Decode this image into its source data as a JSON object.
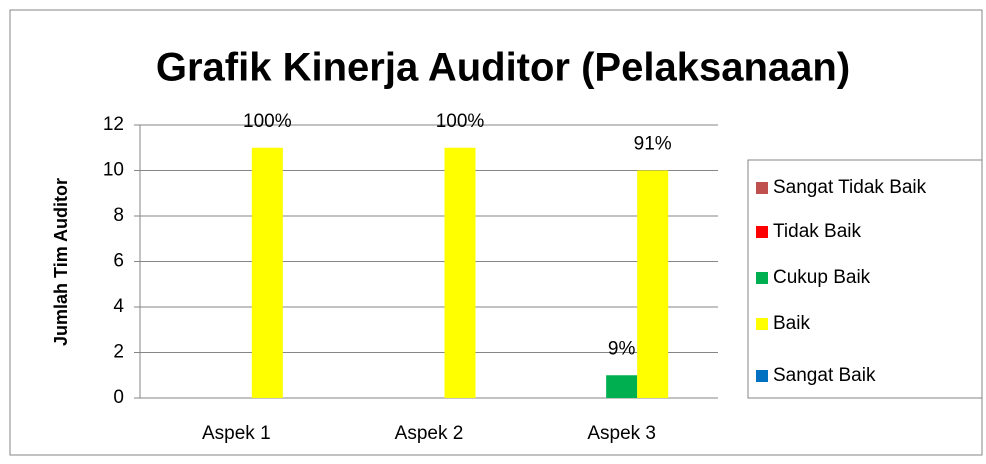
{
  "chart_data": {
    "type": "bar",
    "title": "Grafik Kinerja Auditor (Pelaksanaan)",
    "y_label": "Jumlah  Tim Auditor",
    "categories": [
      "Aspek 1",
      "Aspek 2",
      "Aspek 3"
    ],
    "series": [
      {
        "name": "Sangat Tidak Baik",
        "color": "#c0504d",
        "values": [
          0,
          0,
          0
        ]
      },
      {
        "name": "Tidak Baik",
        "color": "#ff0000",
        "values": [
          0,
          0,
          0
        ]
      },
      {
        "name": "Cukup Baik",
        "color": "#00b050",
        "values": [
          0,
          0,
          1
        ],
        "percent_labels": [
          null,
          null,
          "9%"
        ]
      },
      {
        "name": "Baik",
        "color": "#ffff00",
        "values": [
          11,
          11,
          10
        ],
        "percent_labels": [
          "100%",
          "100%",
          "91%"
        ]
      },
      {
        "name": "Sangat Baik",
        "color": "#0070c0",
        "values": [
          0,
          0,
          0
        ]
      }
    ],
    "ylim": [
      0,
      12
    ],
    "yticks": [
      0,
      2,
      4,
      6,
      8,
      10,
      12
    ],
    "grid": true,
    "legend": "right"
  }
}
